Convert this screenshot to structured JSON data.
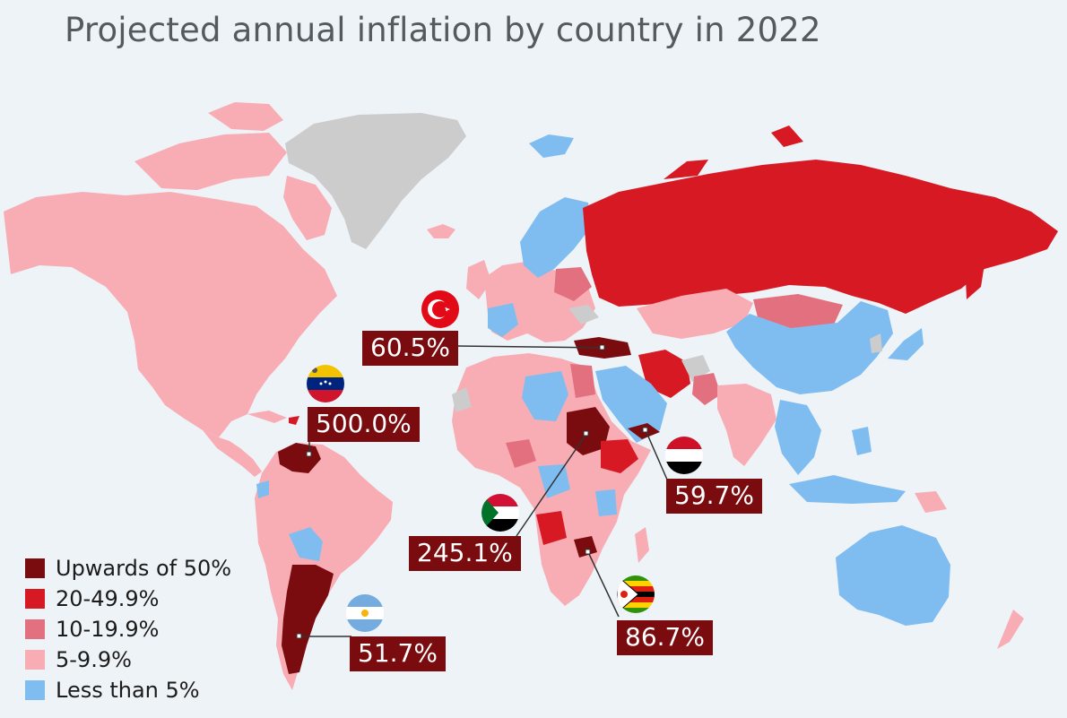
{
  "title": "Projected annual inflation by country in 2022",
  "colors": {
    "background": "#eef3f8",
    "upwards_50": "#7a0c10",
    "band_20_50": "#d71924",
    "band_10_20": "#e3707f",
    "band_5_10": "#f8adb5",
    "below_5": "#7fbdf0",
    "no_data": "#cccccc",
    "label_bg": "#7a0c10"
  },
  "legend": [
    {
      "label": "Upwards of 50%",
      "color": "#7a0c10"
    },
    {
      "label": "20-49.9%",
      "color": "#d71924"
    },
    {
      "label": "10-19.9%",
      "color": "#e3707f"
    },
    {
      "label": "5-9.9%",
      "color": "#f8adb5"
    },
    {
      "label": "Less than 5%",
      "color": "#7fbdf0"
    }
  ],
  "callouts": [
    {
      "id": "turkey",
      "value": "60.5%",
      "flag": "turkey-flag-icon"
    },
    {
      "id": "venezuela",
      "value": "500.0%",
      "flag": "venezuela-flag-icon"
    },
    {
      "id": "yemen",
      "value": "59.7%",
      "flag": "yemen-flag-icon"
    },
    {
      "id": "sudan",
      "value": "245.1%",
      "flag": "sudan-flag-icon"
    },
    {
      "id": "zimbabwe",
      "value": "86.7%",
      "flag": "zimbabwe-flag-icon"
    },
    {
      "id": "argentina",
      "value": "51.7%",
      "flag": "argentina-flag-icon"
    }
  ]
}
